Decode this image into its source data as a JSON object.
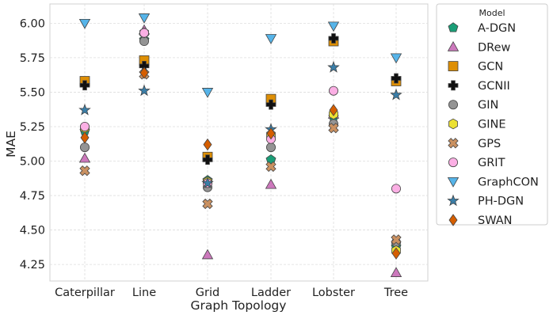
{
  "chart_data": {
    "type": "scatter",
    "xlabel": "Graph Topology",
    "ylabel": "MAE",
    "categories": [
      "Caterpillar",
      "Line",
      "Grid",
      "Ladder",
      "Lobster",
      "Tree"
    ],
    "ylim": [
      4.13,
      6.14
    ],
    "yticks": [
      "4.25",
      "4.50",
      "4.75",
      "5.00",
      "5.25",
      "5.50",
      "5.75",
      "6.00"
    ],
    "grid": true,
    "legend": {
      "title": "Model",
      "placement": "outside-right"
    },
    "series": [
      {
        "name": "A-DGN",
        "marker": "pentagon",
        "color": "#1a9e77",
        "values": [
          5.22,
          5.88,
          4.86,
          5.01,
          5.32,
          4.38
        ]
      },
      {
        "name": "DRew",
        "marker": "triangle-up",
        "color": "#cc78bc",
        "values": [
          5.02,
          5.95,
          4.32,
          4.83,
          5.34,
          4.19
        ]
      },
      {
        "name": "GCN",
        "marker": "square",
        "color": "#de8f05",
        "values": [
          5.58,
          5.73,
          5.03,
          5.45,
          5.87,
          5.58
        ]
      },
      {
        "name": "GCNII",
        "marker": "plus",
        "color": "#111111",
        "values": [
          5.55,
          5.69,
          5.01,
          5.41,
          5.89,
          5.6
        ]
      },
      {
        "name": "GIN",
        "marker": "circle",
        "color": "#949494",
        "values": [
          5.1,
          5.87,
          4.81,
          5.1,
          5.27,
          4.41
        ]
      },
      {
        "name": "GINE",
        "marker": "hexagon",
        "color": "#ece133",
        "values": [
          5.24,
          5.93,
          4.85,
          5.19,
          5.34,
          4.35
        ]
      },
      {
        "name": "GPS",
        "marker": "x",
        "color": "#ca9161",
        "values": [
          4.93,
          5.63,
          4.69,
          4.96,
          5.24,
          4.43
        ]
      },
      {
        "name": "GRIT",
        "marker": "circle",
        "color": "#fbafe4",
        "values": [
          5.25,
          5.93,
          4.84,
          5.16,
          5.51,
          4.8
        ]
      },
      {
        "name": "GraphCON",
        "marker": "triangle-down",
        "color": "#56b4e9",
        "values": [
          6.0,
          6.04,
          5.5,
          5.89,
          5.98,
          5.75
        ]
      },
      {
        "name": "PH-DGN",
        "marker": "star",
        "color": "#3a7ea8",
        "values": [
          5.37,
          5.51,
          4.84,
          5.23,
          5.68,
          5.48
        ]
      },
      {
        "name": "SWAN",
        "marker": "diamond",
        "color": "#d55e00",
        "values": [
          5.17,
          5.64,
          5.12,
          5.2,
          5.37,
          4.33
        ]
      }
    ]
  }
}
